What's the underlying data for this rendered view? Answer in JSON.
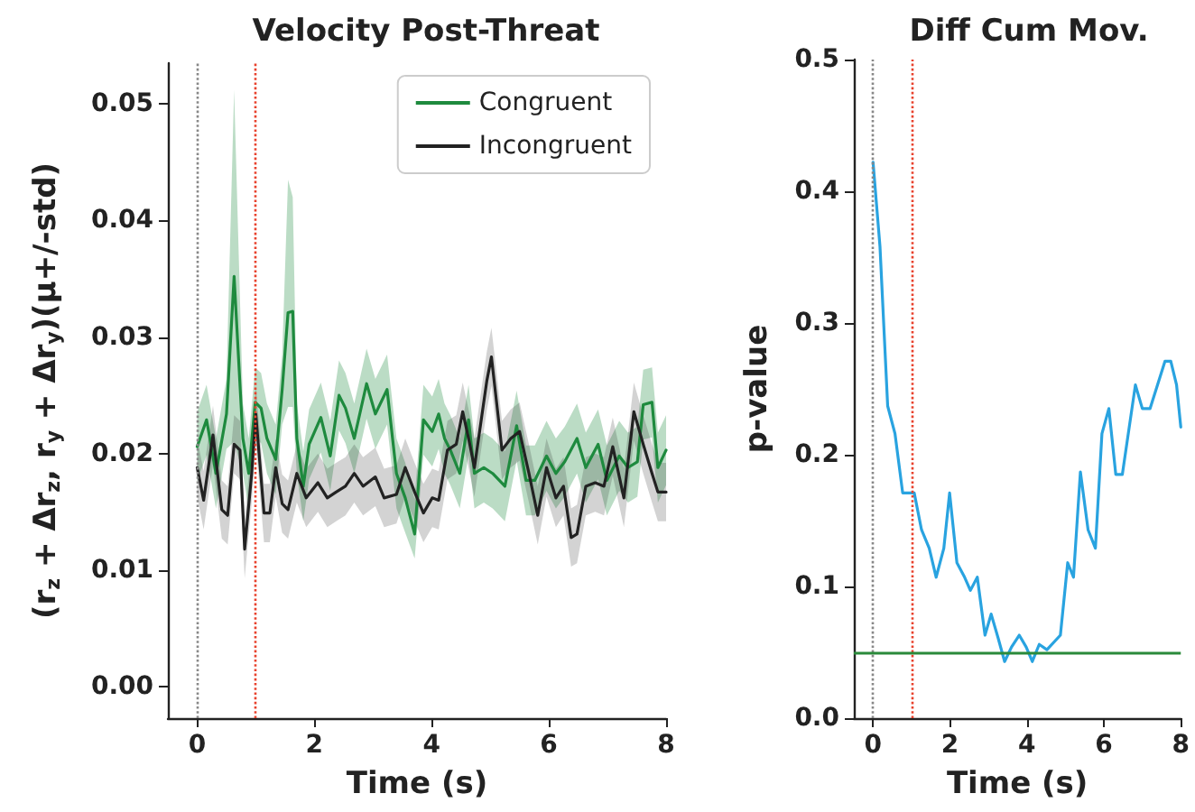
{
  "chart_data": [
    {
      "type": "line",
      "title": "Velocity Post-Threat",
      "xlabel": "Time (s)",
      "ylabel": "(r$_{z}$ + Δr$_{z}$, r$_{y}$ + Δr$_{y}$)(μ+/-std)",
      "legend": "top right",
      "grid": false,
      "marker": "none",
      "xlim": [
        -0.5,
        8
      ],
      "xticks": [
        0,
        2,
        4,
        6,
        8
      ],
      "ylim": [
        -0.0027,
        0.0535
      ],
      "yticks": [
        {
          "value": 0,
          "label": "0.00"
        },
        {
          "value": 0.01,
          "label": "0.01"
        },
        {
          "value": 0.02,
          "label": "0.02"
        },
        {
          "value": 0.03,
          "label": "0.03"
        },
        {
          "value": 0.04,
          "label": "0.04"
        },
        {
          "value": 0.05,
          "label": "0.05"
        }
      ],
      "ref_lines": [
        {
          "axis": "x",
          "value": 0,
          "color": "#888888",
          "line_style": "dotted"
        },
        {
          "axis": "x",
          "value": 1,
          "color": "#e8412c",
          "line_style": "dotted"
        }
      ],
      "series": [
        {
          "name": "Congruent",
          "color": "#1e8a3e",
          "x": [
            0,
            0.16,
            0.32,
            0.5,
            0.63,
            0.78,
            0.88,
            0.99,
            1.09,
            1.19,
            1.34,
            1.45,
            1.55,
            1.63,
            1.7,
            1.81,
            1.91,
            2.11,
            2.27,
            2.42,
            2.53,
            2.68,
            2.89,
            3.04,
            3.24,
            3.4,
            3.55,
            3.71,
            3.86,
            4.01,
            4.12,
            4.22,
            4.32,
            4.48,
            4.63,
            4.73,
            4.89,
            5.04,
            5.25,
            5.45,
            5.61,
            5.76,
            5.96,
            6.12,
            6.27,
            6.48,
            6.63,
            6.84,
            6.99,
            7.2,
            7.35,
            7.51,
            7.61,
            7.76,
            7.86,
            8
          ],
          "values": [
            0.0206,
            0.0229,
            0.0183,
            0.0234,
            0.0352,
            0.0213,
            0.0183,
            0.0244,
            0.0239,
            0.0213,
            0.0195,
            0.0255,
            0.0321,
            0.0322,
            0.0213,
            0.0172,
            0.0208,
            0.0231,
            0.0198,
            0.025,
            0.0239,
            0.0213,
            0.026,
            0.0234,
            0.0255,
            0.0183,
            0.0162,
            0.0131,
            0.0229,
            0.0219,
            0.0234,
            0.0213,
            0.0203,
            0.0183,
            0.0229,
            0.0183,
            0.0188,
            0.0183,
            0.0172,
            0.0224,
            0.0177,
            0.0177,
            0.0198,
            0.0183,
            0.0193,
            0.0213,
            0.0188,
            0.0208,
            0.0177,
            0.0198,
            0.0188,
            0.0193,
            0.0242,
            0.0244,
            0.0188,
            0.0203
          ],
          "lower": [
            0.0176,
            0.0199,
            0.0153,
            0.0204,
            0.021,
            0.0183,
            0.0153,
            0.0214,
            0.0209,
            0.0183,
            0.0165,
            0.0225,
            0.024,
            0.024,
            0.0183,
            0.0142,
            0.0178,
            0.0201,
            0.0168,
            0.022,
            0.0209,
            0.0183,
            0.023,
            0.0204,
            0.0225,
            0.0153,
            0.0132,
            0.011,
            0.0199,
            0.0189,
            0.0204,
            0.0183,
            0.0173,
            0.0153,
            0.0199,
            0.0153,
            0.0158,
            0.0153,
            0.0142,
            0.0194,
            0.0147,
            0.0147,
            0.0168,
            0.0153,
            0.0163,
            0.0183,
            0.0158,
            0.0178,
            0.0147,
            0.0168,
            0.0158,
            0.0163,
            0.0212,
            0.0214,
            0.0158,
            0.0173
          ],
          "upper": [
            0.0236,
            0.0259,
            0.0213,
            0.0264,
            0.0512,
            0.0243,
            0.0213,
            0.0274,
            0.0269,
            0.0243,
            0.0225,
            0.0285,
            0.0435,
            0.042,
            0.0243,
            0.0202,
            0.0238,
            0.0261,
            0.0228,
            0.028,
            0.0269,
            0.0243,
            0.029,
            0.0264,
            0.0285,
            0.0213,
            0.0192,
            0.0161,
            0.0259,
            0.0249,
            0.0264,
            0.0243,
            0.0233,
            0.0213,
            0.0259,
            0.0213,
            0.0218,
            0.0213,
            0.0202,
            0.0254,
            0.0207,
            0.0207,
            0.0228,
            0.0213,
            0.0223,
            0.0243,
            0.0218,
            0.0238,
            0.0207,
            0.0228,
            0.0218,
            0.0223,
            0.0272,
            0.0274,
            0.0218,
            0.0233
          ]
        },
        {
          "name": "Incongruent",
          "color": "#222222",
          "x": [
            0,
            0.11,
            0.27,
            0.42,
            0.52,
            0.63,
            0.73,
            0.81,
            0.93,
            1,
            1.14,
            1.24,
            1.34,
            1.45,
            1.55,
            1.7,
            1.86,
            2.06,
            2.22,
            2.37,
            2.53,
            2.68,
            2.83,
            3.04,
            3.19,
            3.4,
            3.55,
            3.71,
            3.86,
            4.01,
            4.12,
            4.27,
            4.42,
            4.53,
            4.63,
            4.73,
            4.94,
            5.02,
            5.2,
            5.35,
            5.5,
            5.66,
            5.81,
            5.96,
            6.12,
            6.25,
            6.38,
            6.48,
            6.63,
            6.79,
            6.94,
            7.09,
            7.28,
            7.45,
            7.61,
            7.76,
            7.86,
            8
          ],
          "values": [
            0.0188,
            0.016,
            0.0216,
            0.0152,
            0.0147,
            0.0208,
            0.0203,
            0.0118,
            0.0183,
            0.0234,
            0.0149,
            0.0149,
            0.0188,
            0.0157,
            0.0152,
            0.0183,
            0.0162,
            0.0175,
            0.0162,
            0.0167,
            0.0172,
            0.0183,
            0.0172,
            0.018,
            0.0162,
            0.0165,
            0.0188,
            0.0167,
            0.0149,
            0.0162,
            0.016,
            0.0203,
            0.0208,
            0.0236,
            0.0213,
            0.0188,
            0.0262,
            0.0283,
            0.0203,
            0.0213,
            0.0219,
            0.0183,
            0.0147,
            0.0188,
            0.0162,
            0.0172,
            0.0128,
            0.0131,
            0.0172,
            0.0175,
            0.0172,
            0.0206,
            0.0162,
            0.0236,
            0.0208,
            0.0183,
            0.0167,
            0.0167
          ],
          "lower": [
            0.0163,
            0.0135,
            0.0191,
            0.0127,
            0.0122,
            0.0183,
            0.0178,
            0.0093,
            0.0158,
            0.0209,
            0.0124,
            0.0124,
            0.0163,
            0.0132,
            0.0127,
            0.0158,
            0.0137,
            0.015,
            0.0137,
            0.0142,
            0.0147,
            0.0158,
            0.0147,
            0.0155,
            0.0137,
            0.014,
            0.0163,
            0.0142,
            0.0124,
            0.0137,
            0.0135,
            0.0178,
            0.0183,
            0.0211,
            0.0188,
            0.0163,
            0.0237,
            0.0258,
            0.0178,
            0.0188,
            0.0194,
            0.0158,
            0.0122,
            0.0163,
            0.0137,
            0.0147,
            0.0103,
            0.0106,
            0.0147,
            0.015,
            0.0147,
            0.0181,
            0.0137,
            0.0211,
            0.0183,
            0.0158,
            0.0142,
            0.0142
          ],
          "upper": [
            0.0213,
            0.0185,
            0.0241,
            0.0177,
            0.0172,
            0.0233,
            0.0228,
            0.0143,
            0.0208,
            0.0259,
            0.0174,
            0.0174,
            0.0213,
            0.0182,
            0.0177,
            0.0208,
            0.0187,
            0.02,
            0.0187,
            0.0192,
            0.0197,
            0.0208,
            0.0197,
            0.0205,
            0.0187,
            0.019,
            0.0213,
            0.0192,
            0.0174,
            0.0187,
            0.0185,
            0.0228,
            0.0233,
            0.0261,
            0.0238,
            0.0213,
            0.0287,
            0.0308,
            0.0228,
            0.0238,
            0.0244,
            0.0208,
            0.0172,
            0.0213,
            0.0187,
            0.0197,
            0.0153,
            0.0156,
            0.0197,
            0.02,
            0.0197,
            0.0231,
            0.0187,
            0.0261,
            0.0233,
            0.0208,
            0.0192,
            0.0192
          ]
        }
      ]
    },
    {
      "type": "line",
      "title": "Diff Cum Mov.",
      "xlabel": "Time (s)",
      "ylabel": "p-value",
      "grid": false,
      "marker": "none",
      "xlim": [
        -0.5,
        8
      ],
      "xticks": [
        0,
        2,
        4,
        6,
        8
      ],
      "ylim": [
        0,
        0.5
      ],
      "yticks": [
        {
          "value": 0,
          "label": "0.0"
        },
        {
          "value": 0.1,
          "label": "0.1"
        },
        {
          "value": 0.2,
          "label": "0.2"
        },
        {
          "value": 0.3,
          "label": "0.3"
        },
        {
          "value": 0.4,
          "label": "0.4"
        },
        {
          "value": 0.5,
          "label": "0.5"
        }
      ],
      "ref_lines": [
        {
          "axis": "x",
          "value": 0,
          "color": "#888888",
          "line_style": "dotted"
        },
        {
          "axis": "x",
          "value": 1,
          "color": "#e8412c",
          "line_style": "dotted"
        },
        {
          "axis": "y",
          "value": 0.05,
          "color": "#2a8a3a",
          "line_style": "solid"
        }
      ],
      "series": [
        {
          "color": "#29a3e0",
          "x": [
            0,
            0.18,
            0.38,
            0.57,
            0.77,
            1.07,
            1.26,
            1.46,
            1.64,
            1.84,
            1.99,
            2.18,
            2.38,
            2.53,
            2.71,
            2.91,
            3.07,
            3.25,
            3.42,
            3.6,
            3.8,
            3.98,
            4.14,
            4.32,
            4.52,
            4.87,
            5.06,
            5.21,
            5.39,
            5.59,
            5.78,
            5.95,
            6.13,
            6.31,
            6.48,
            6.82,
            7,
            7.2,
            7.59,
            7.74,
            7.89,
            8
          ],
          "values": [
            0.422,
            0.358,
            0.237,
            0.216,
            0.171,
            0.171,
            0.143,
            0.129,
            0.107,
            0.129,
            0.171,
            0.118,
            0.107,
            0.097,
            0.107,
            0.063,
            0.079,
            0.061,
            0.043,
            0.054,
            0.063,
            0.054,
            0.043,
            0.056,
            0.052,
            0.063,
            0.118,
            0.107,
            0.187,
            0.143,
            0.129,
            0.216,
            0.235,
            0.185,
            0.185,
            0.253,
            0.235,
            0.235,
            0.271,
            0.271,
            0.253,
            0.221
          ]
        }
      ]
    }
  ]
}
